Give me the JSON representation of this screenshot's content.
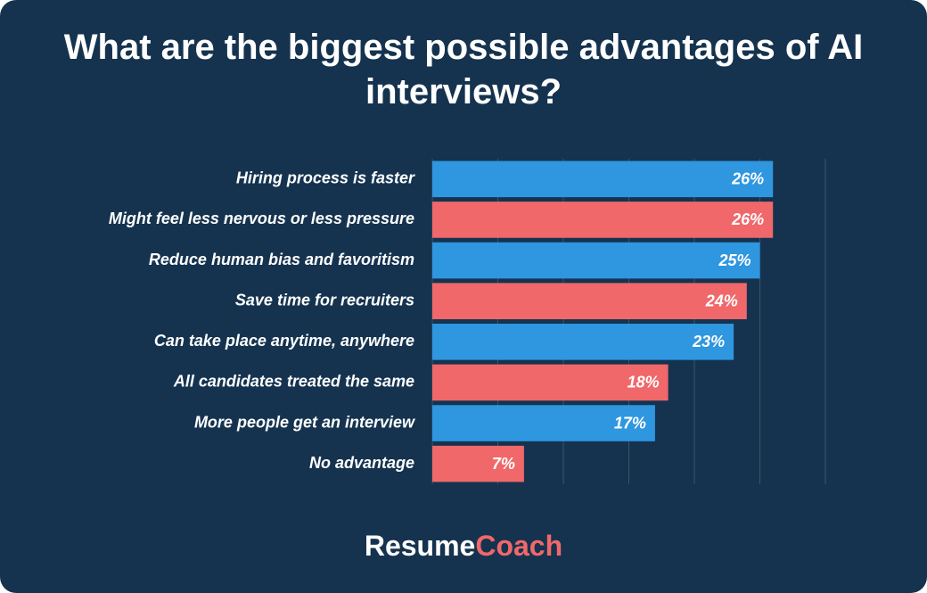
{
  "chart_data": {
    "type": "bar",
    "orientation": "horizontal",
    "title": "What are the biggest possible advantages of AI interviews?",
    "categories": [
      "Hiring process is faster",
      "Might feel less nervous or less pressure",
      "Reduce human bias and favoritism",
      "Save time for recruiters",
      "Can take place anytime, anywhere",
      "All candidates treated the same",
      "More people get an interview",
      "No advantage"
    ],
    "values": [
      26,
      26,
      25,
      24,
      23,
      18,
      17,
      7
    ],
    "value_labels": [
      "26%",
      "26%",
      "25%",
      "24%",
      "23%",
      "18%",
      "17%",
      "7%"
    ],
    "colors": [
      "#2f96e0",
      "#f0686a",
      "#2f96e0",
      "#f0686a",
      "#2f96e0",
      "#f0686a",
      "#2f96e0",
      "#f0686a"
    ],
    "xlim": [
      0,
      30
    ],
    "xticks": [
      0,
      5,
      10,
      15,
      20,
      25,
      30
    ],
    "grid": true,
    "brand": [
      "Resume",
      "Coach"
    ]
  }
}
